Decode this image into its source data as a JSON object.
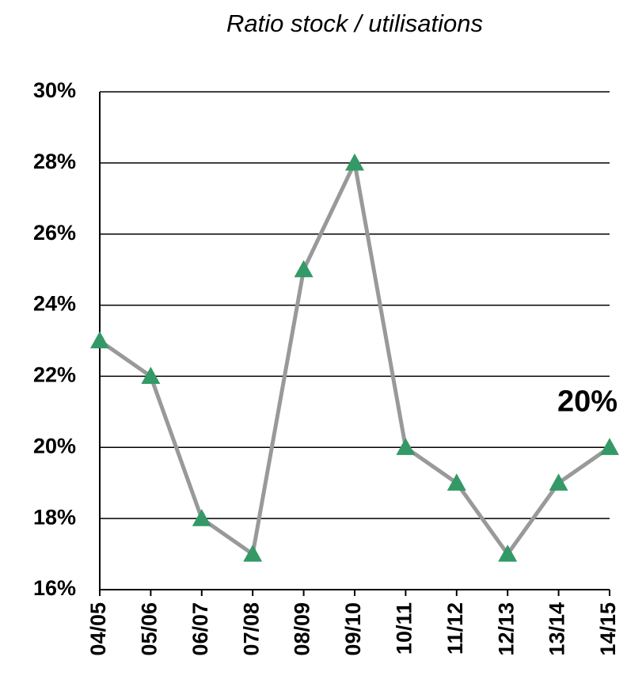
{
  "chart_data": {
    "type": "line",
    "title": "Ratio stock / utilisations",
    "categories": [
      "04/05",
      "05/06",
      "06/07",
      "07/08",
      "08/09",
      "09/10",
      "10/11",
      "11/12",
      "12/13",
      "13/14",
      "14/15"
    ],
    "values": [
      23,
      22,
      18,
      17,
      25,
      28,
      20,
      19,
      17,
      19,
      20
    ],
    "value_labels": [
      null,
      null,
      null,
      null,
      null,
      null,
      null,
      null,
      null,
      null,
      "20%"
    ],
    "line_color": "#999999",
    "marker_color": "#339966",
    "ylim": [
      16,
      30
    ],
    "yticks": [
      {
        "value": 16,
        "label": "16%"
      },
      {
        "value": 18,
        "label": "18%"
      },
      {
        "value": 20,
        "label": "20%"
      },
      {
        "value": 22,
        "label": "22%"
      },
      {
        "value": 24,
        "label": "24%"
      },
      {
        "value": 26,
        "label": "26%"
      },
      {
        "value": 28,
        "label": "28%"
      },
      {
        "value": 30,
        "label": "30%"
      }
    ],
    "grid": true
  }
}
